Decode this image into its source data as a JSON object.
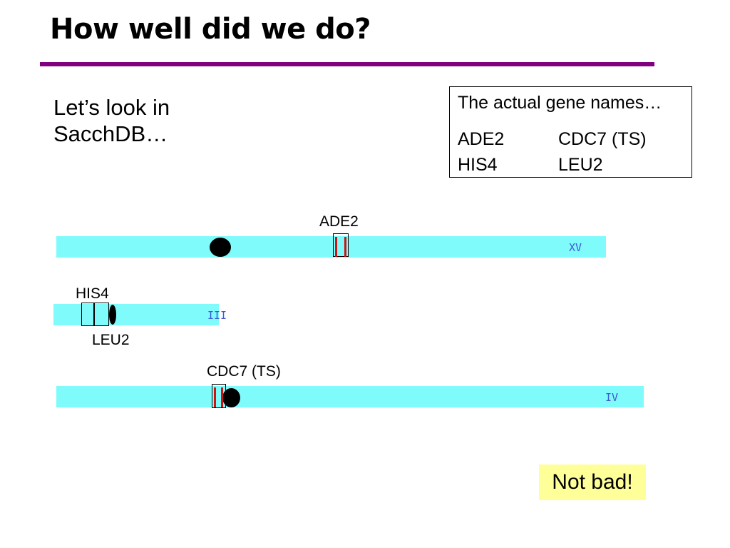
{
  "slide": {
    "title": "How well did we do?",
    "accent_color": "#800080",
    "intro_line1": "Let’s look in",
    "intro_line2": "SacchDB…"
  },
  "gene_names_box": {
    "header": "The actual gene names…",
    "rows": [
      [
        "ADE2",
        "CDC7 (TS)"
      ],
      [
        "HIS4",
        "LEU2"
      ]
    ]
  },
  "chromosomes": {
    "xv": {
      "numeral": "XV",
      "gene_label": "ADE2"
    },
    "iii": {
      "numeral": "III",
      "gene_label_top": "HIS4",
      "gene_label_bottom": "LEU2"
    },
    "iv": {
      "numeral": "IV",
      "gene_label": "CDC7 (TS)"
    },
    "chromosome_color": "#7ffbfb",
    "numeral_color": "#3c5bd6"
  },
  "footer": {
    "verdict": "Not bad!",
    "verdict_bg": "#ffff99"
  }
}
